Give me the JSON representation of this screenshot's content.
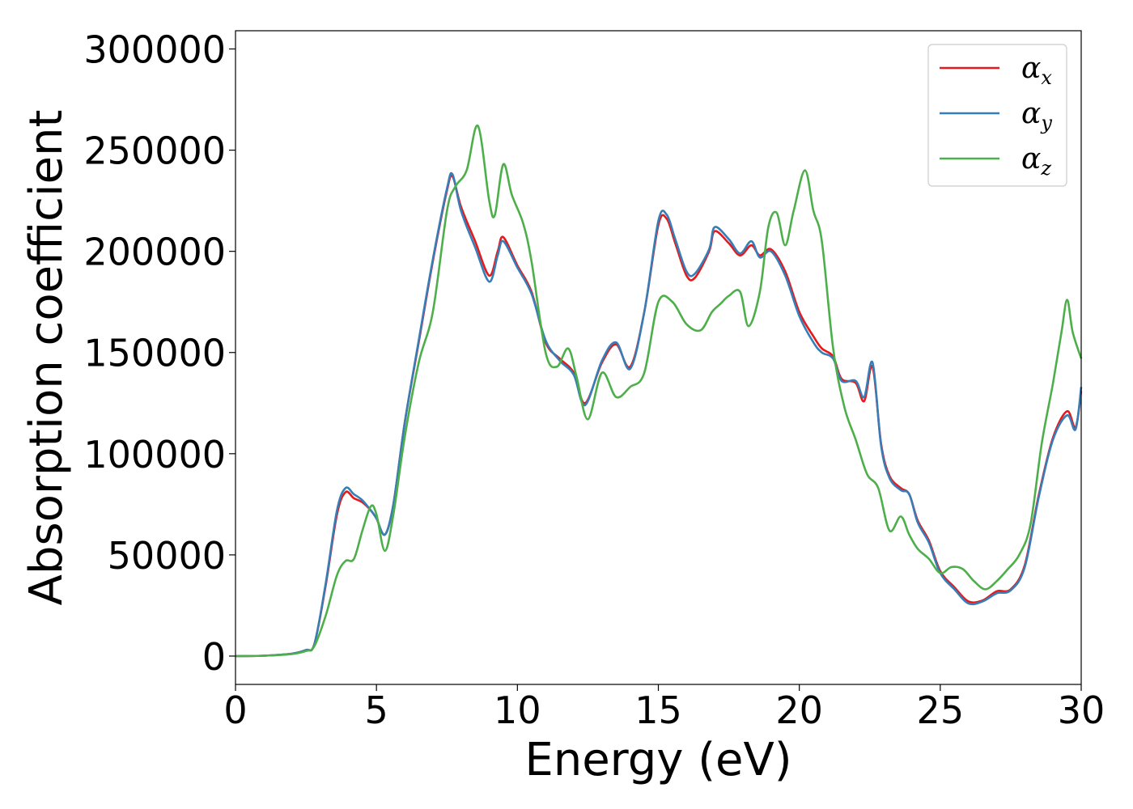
{
  "chart_data": {
    "type": "line",
    "xlabel": "Energy (eV)",
    "ylabel": "Absorption coefficient",
    "xlim": [
      0,
      30
    ],
    "ylim": [
      -14000,
      309000
    ],
    "xticks": [
      0,
      5,
      10,
      15,
      20,
      25,
      30
    ],
    "yticks": [
      0,
      50000,
      100000,
      150000,
      200000,
      250000,
      300000
    ],
    "grid": false,
    "legend_position": "top-right",
    "series": [
      {
        "name": "α",
        "subscript": "x",
        "color": "#e41a1c",
        "x": [
          0,
          1,
          2,
          2.5,
          2.8,
          3.2,
          3.6,
          3.9,
          4.2,
          4.5,
          4.8,
          5.0,
          5.3,
          5.6,
          6.0,
          6.5,
          7.0,
          7.5,
          7.7,
          8.0,
          8.5,
          9.0,
          9.3,
          9.5,
          10.0,
          10.5,
          11.0,
          11.5,
          12.0,
          12.4,
          13.0,
          13.5,
          14.0,
          14.5,
          15.0,
          15.3,
          15.6,
          16.0,
          16.3,
          16.8,
          17.0,
          17.5,
          17.9,
          18.3,
          18.6,
          19.0,
          19.5,
          20.0,
          20.5,
          20.8,
          21.2,
          21.5,
          22.0,
          22.3,
          22.6,
          22.9,
          23.2,
          23.6,
          23.9,
          24.2,
          24.6,
          25.0,
          25.5,
          26.0,
          26.5,
          27.0,
          27.5,
          28.0,
          28.5,
          29.0,
          29.5,
          29.8,
          30.0
        ],
        "y": [
          0,
          200,
          1200,
          3000,
          6000,
          35000,
          70000,
          81000,
          78000,
          76000,
          72000,
          68000,
          60000,
          75000,
          115000,
          155000,
          195000,
          230000,
          237000,
          222000,
          205000,
          188000,
          200000,
          207000,
          193000,
          180000,
          155000,
          147000,
          140000,
          125000,
          145000,
          154000,
          143000,
          170000,
          213000,
          216000,
          204000,
          188000,
          187000,
          200000,
          210000,
          204000,
          198000,
          203000,
          198000,
          201000,
          190000,
          170000,
          158000,
          152000,
          148000,
          137000,
          135000,
          126000,
          143000,
          105000,
          89000,
          83000,
          80000,
          67000,
          57000,
          42000,
          34000,
          27000,
          27500,
          32000,
          33000,
          45000,
          80000,
          108000,
          121000,
          113000,
          131000
        ]
      },
      {
        "name": "α",
        "subscript": "y",
        "color": "#377eb8",
        "x": [
          0,
          1,
          2,
          2.5,
          2.8,
          3.2,
          3.6,
          3.9,
          4.2,
          4.5,
          4.8,
          5.0,
          5.3,
          5.6,
          6.0,
          6.5,
          7.0,
          7.5,
          7.7,
          8.0,
          8.5,
          9.0,
          9.3,
          9.5,
          10.0,
          10.5,
          11.0,
          11.5,
          12.0,
          12.4,
          13.0,
          13.5,
          14.0,
          14.5,
          15.0,
          15.3,
          15.6,
          16.0,
          16.3,
          16.8,
          17.0,
          17.5,
          17.9,
          18.3,
          18.6,
          19.0,
          19.5,
          20.0,
          20.5,
          20.8,
          21.2,
          21.5,
          22.0,
          22.3,
          22.6,
          22.9,
          23.2,
          23.6,
          23.9,
          24.2,
          24.6,
          25.0,
          25.5,
          26.0,
          26.5,
          27.0,
          27.5,
          28.0,
          28.5,
          29.0,
          29.5,
          29.8,
          30.0
        ],
        "y": [
          0,
          200,
          1200,
          3000,
          6000,
          36000,
          72000,
          83000,
          80000,
          77000,
          72000,
          68000,
          60000,
          75000,
          115000,
          156000,
          196000,
          231000,
          238000,
          220000,
          202000,
          185000,
          198000,
          205000,
          192000,
          179000,
          156000,
          146000,
          139000,
          124000,
          146000,
          155000,
          142000,
          170000,
          215000,
          218000,
          206000,
          190000,
          189000,
          201000,
          212000,
          206000,
          199000,
          205000,
          197000,
          200000,
          188000,
          168000,
          155000,
          150000,
          147000,
          136000,
          136000,
          128000,
          145000,
          104000,
          88000,
          82000,
          80000,
          66000,
          56000,
          41000,
          33000,
          26000,
          27000,
          31000,
          32500,
          44000,
          79000,
          107000,
          119000,
          112000,
          133000
        ]
      },
      {
        "name": "α",
        "subscript": "z",
        "color": "#4daf4a",
        "x": [
          0,
          1,
          2,
          2.5,
          2.8,
          3.2,
          3.6,
          3.9,
          4.2,
          4.5,
          4.8,
          5.0,
          5.3,
          5.6,
          6.0,
          6.5,
          7.0,
          7.5,
          7.8,
          8.2,
          8.6,
          9.0,
          9.2,
          9.5,
          9.8,
          10.2,
          10.5,
          11.0,
          11.4,
          11.8,
          12.1,
          12.5,
          13.0,
          13.5,
          14.0,
          14.5,
          15.0,
          15.5,
          16.0,
          16.5,
          16.9,
          17.2,
          17.5,
          17.9,
          18.2,
          18.6,
          18.9,
          19.2,
          19.5,
          19.8,
          20.2,
          20.5,
          20.8,
          21.2,
          21.6,
          22.0,
          22.4,
          22.8,
          23.2,
          23.6,
          23.9,
          24.2,
          24.6,
          25.0,
          25.4,
          25.8,
          26.2,
          26.6,
          27.0,
          27.4,
          27.8,
          28.2,
          28.6,
          29.0,
          29.3,
          29.5,
          29.7,
          30.0
        ],
        "y": [
          0,
          200,
          1000,
          2500,
          5000,
          20000,
          40000,
          47000,
          48000,
          62000,
          74000,
          70000,
          52000,
          70000,
          108000,
          145000,
          170000,
          220000,
          232000,
          240000,
          262000,
          225000,
          218000,
          243000,
          228000,
          214000,
          195000,
          150000,
          143000,
          152000,
          138000,
          117000,
          140000,
          128000,
          133000,
          140000,
          175000,
          175000,
          164000,
          161000,
          170000,
          174000,
          178000,
          180000,
          163000,
          180000,
          212000,
          219000,
          203000,
          220000,
          240000,
          220000,
          205000,
          152000,
          123000,
          107000,
          90000,
          83000,
          62000,
          69000,
          60000,
          53000,
          48000,
          41000,
          44000,
          43000,
          37000,
          33000,
          37000,
          43000,
          50000,
          65000,
          105000,
          135000,
          160000,
          176000,
          160000,
          147000
        ]
      }
    ]
  }
}
